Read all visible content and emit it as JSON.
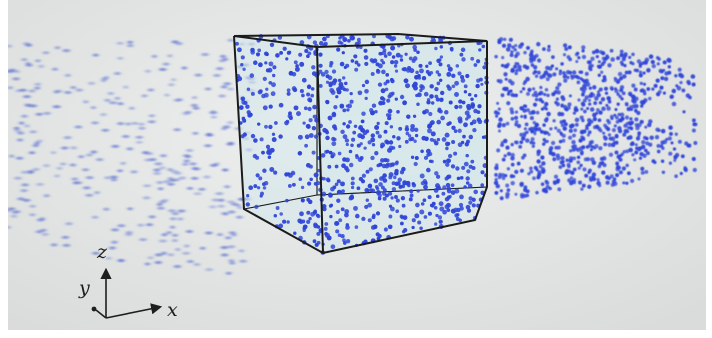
{
  "axes": {
    "x_label": "x",
    "y_label": "y",
    "z_label": "z"
  },
  "colors": {
    "background_center": "#eef0ef",
    "background_edge": "#d9dcdb",
    "particle": "#2f45d8",
    "particle_faint": "#5b6fd0",
    "box_fill": "#cfe6ea",
    "box_edge": "#1b1b1b",
    "axis": "#1e1e1e"
  },
  "particles": {
    "blurred_left_count": 330,
    "inside_box_count": 900,
    "right_cloud_count": 820
  }
}
